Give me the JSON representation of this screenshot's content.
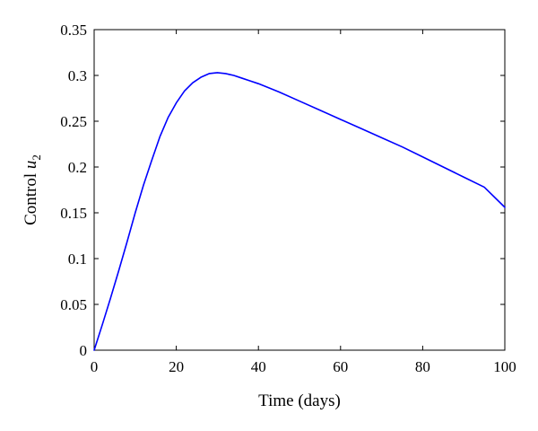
{
  "chart_data": {
    "type": "line",
    "title": "",
    "xlabel": "Time (days)",
    "ylabel": {
      "prefix": "Control ",
      "symbol": "u",
      "subscript": "2"
    },
    "xlim": [
      0,
      100
    ],
    "ylim": [
      0,
      0.35
    ],
    "xticks": [
      "0",
      "20",
      "40",
      "60",
      "80",
      "100"
    ],
    "yticks": [
      "0",
      "0.05",
      "0.1",
      "0.15",
      "0.2",
      "0.25",
      "0.3",
      "0.35"
    ],
    "grid": false,
    "legend": "none",
    "series": [
      {
        "color": "#0000ff",
        "x": [
          0,
          2,
          4,
          6,
          8,
          10,
          12,
          14,
          16,
          18,
          20,
          22,
          24,
          26,
          28,
          30,
          32,
          34,
          36,
          38,
          40,
          45,
          50,
          55,
          60,
          65,
          70,
          75,
          80,
          85,
          90,
          95,
          100
        ],
        "y": [
          0,
          0.028,
          0.057,
          0.087,
          0.118,
          0.15,
          0.18,
          0.207,
          0.233,
          0.254,
          0.27,
          0.283,
          0.292,
          0.298,
          0.302,
          0.303,
          0.302,
          0.3,
          0.297,
          0.294,
          0.291,
          0.282,
          0.272,
          0.262,
          0.252,
          0.242,
          0.232,
          0.222,
          0.211,
          0.2,
          0.189,
          0.178,
          0.156
        ]
      }
    ]
  }
}
